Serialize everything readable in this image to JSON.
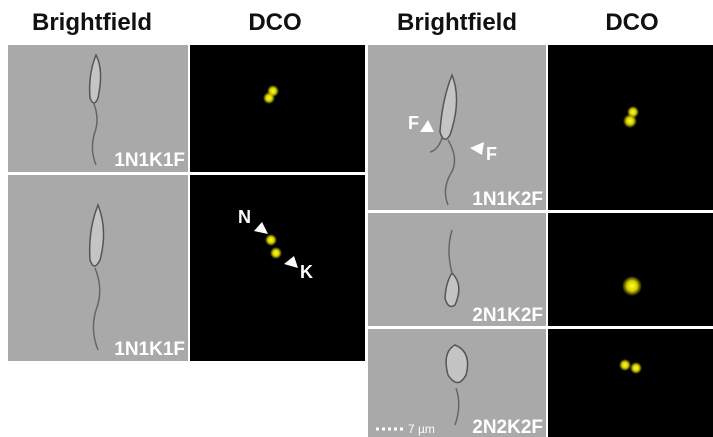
{
  "headers": [
    "Brightfield",
    "DCO",
    "Brightfield",
    "DCO"
  ],
  "panels": [
    {
      "label": "1N1K1F"
    },
    {
      "label": "1N1K1F",
      "annotations": [
        "N",
        "K"
      ]
    },
    {
      "label": "1N1K2F",
      "annotations": [
        "F",
        "F"
      ]
    },
    {
      "label": "2N1K2F"
    },
    {
      "label": "2N2K2F"
    }
  ],
  "scale_bar": "7 µm"
}
